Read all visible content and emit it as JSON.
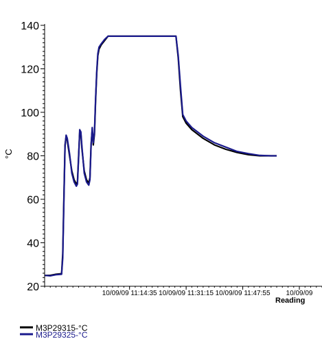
{
  "chart_data": {
    "type": "line",
    "ylabel": "°C",
    "xlabel": "Reading",
    "ylim": [
      20,
      140
    ],
    "yticks": [
      "20",
      "40",
      "60",
      "80",
      "100",
      "120",
      "140"
    ],
    "x_ticks": [
      {
        "label": "10/09/09 11:14:35",
        "reading": 150
      },
      {
        "label": "10/09/09 11:31:15",
        "reading": 250
      },
      {
        "label": "10/09/09 11:47:55",
        "reading": 350
      },
      {
        "label": "10/09/09",
        "reading": 450
      }
    ],
    "xlim": [
      0,
      490
    ],
    "grid": false,
    "legend_position": "bottom-left",
    "series": [
      {
        "name": "M3P29315-°C",
        "color": "#000000",
        "points": [
          [
            0,
            25
          ],
          [
            10,
            25
          ],
          [
            20,
            25.5
          ],
          [
            30,
            25.8
          ],
          [
            32,
            35
          ],
          [
            34,
            60
          ],
          [
            36,
            85
          ],
          [
            38,
            89
          ],
          [
            40,
            87
          ],
          [
            44,
            80
          ],
          [
            48,
            73
          ],
          [
            52,
            69
          ],
          [
            56,
            67
          ],
          [
            58,
            68
          ],
          [
            60,
            80
          ],
          [
            62,
            91
          ],
          [
            64,
            90
          ],
          [
            66,
            83
          ],
          [
            70,
            73
          ],
          [
            74,
            69
          ],
          [
            78,
            67.5
          ],
          [
            80,
            70
          ],
          [
            82,
            85
          ],
          [
            84,
            92
          ],
          [
            86,
            85
          ],
          [
            88,
            90
          ],
          [
            90,
            105
          ],
          [
            92,
            118
          ],
          [
            94,
            126
          ],
          [
            96,
            129
          ],
          [
            100,
            131
          ],
          [
            106,
            133
          ],
          [
            112,
            135
          ],
          [
            120,
            135
          ],
          [
            150,
            135
          ],
          [
            200,
            135
          ],
          [
            232,
            135
          ],
          [
            236,
            125
          ],
          [
            240,
            110
          ],
          [
            244,
            98
          ],
          [
            250,
            95
          ],
          [
            260,
            92
          ],
          [
            280,
            88
          ],
          [
            300,
            85
          ],
          [
            320,
            83
          ],
          [
            340,
            81.5
          ],
          [
            360,
            80.5
          ],
          [
            380,
            80
          ],
          [
            400,
            80
          ],
          [
            410,
            80
          ]
        ]
      },
      {
        "name": "M3P29325-°C",
        "color": "#1a1a8c",
        "points": [
          [
            0,
            25
          ],
          [
            10,
            24.8
          ],
          [
            20,
            25.3
          ],
          [
            30,
            25.5
          ],
          [
            32,
            33
          ],
          [
            34,
            58
          ],
          [
            36,
            84
          ],
          [
            38,
            89.5
          ],
          [
            40,
            88
          ],
          [
            44,
            81
          ],
          [
            48,
            72
          ],
          [
            52,
            68
          ],
          [
            56,
            66
          ],
          [
            58,
            67
          ],
          [
            60,
            79
          ],
          [
            62,
            92
          ],
          [
            64,
            91
          ],
          [
            66,
            84
          ],
          [
            70,
            72
          ],
          [
            74,
            68
          ],
          [
            78,
            66.5
          ],
          [
            80,
            69
          ],
          [
            82,
            84
          ],
          [
            84,
            93
          ],
          [
            86,
            86
          ],
          [
            88,
            91
          ],
          [
            90,
            106
          ],
          [
            92,
            119
          ],
          [
            94,
            127
          ],
          [
            96,
            130
          ],
          [
            100,
            131.5
          ],
          [
            106,
            133.5
          ],
          [
            112,
            135
          ],
          [
            120,
            135
          ],
          [
            150,
            135
          ],
          [
            200,
            135
          ],
          [
            232,
            135
          ],
          [
            236,
            126
          ],
          [
            240,
            112
          ],
          [
            244,
            99
          ],
          [
            250,
            96
          ],
          [
            260,
            93
          ],
          [
            280,
            89
          ],
          [
            300,
            86
          ],
          [
            320,
            84
          ],
          [
            340,
            82
          ],
          [
            360,
            81
          ],
          [
            380,
            80.2
          ],
          [
            400,
            80
          ],
          [
            410,
            80
          ]
        ]
      }
    ]
  }
}
